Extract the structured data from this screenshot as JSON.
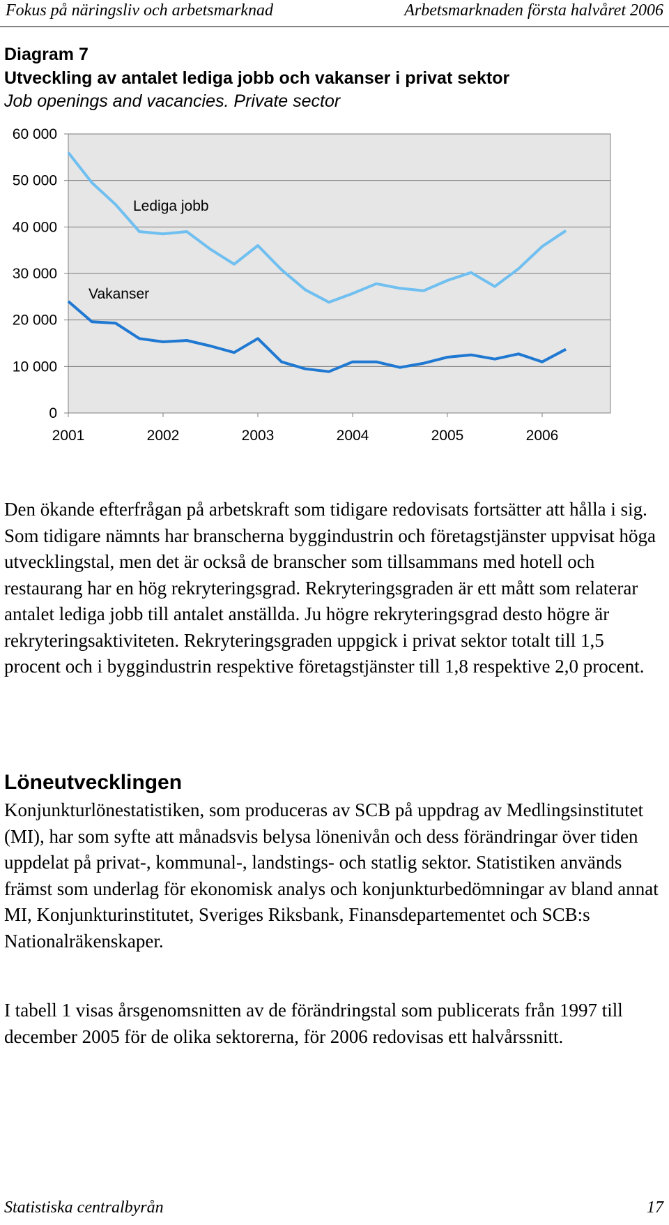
{
  "header": {
    "left": "Fokus på näringsliv och arbetsmarknad",
    "right": "Arbetsmarknaden första halvåret 2006"
  },
  "figure": {
    "number": "Diagram 7",
    "title": "Utveckling av antalet lediga jobb och vakanser i privat sektor",
    "subtitle": "Job openings and vacancies. Private sector"
  },
  "chart_data": {
    "type": "line",
    "x": [
      "2001Q1",
      "2001Q2",
      "2001Q3",
      "2001Q4",
      "2002Q1",
      "2002Q2",
      "2002Q3",
      "2002Q4",
      "2003Q1",
      "2003Q2",
      "2003Q3",
      "2003Q4",
      "2004Q1",
      "2004Q2",
      "2004Q3",
      "2004Q4",
      "2005Q1",
      "2005Q2",
      "2005Q3",
      "2005Q4",
      "2006Q1",
      "2006Q2"
    ],
    "x_tick_labels": [
      "2001",
      "2002",
      "2003",
      "2004",
      "2005",
      "2006"
    ],
    "y_tick_labels": [
      "0",
      "10 000",
      "20 000",
      "30 000",
      "40 000",
      "50 000",
      "60 000"
    ],
    "ylim": [
      0,
      60000
    ],
    "grid": true,
    "series": [
      {
        "name": "Lediga jobb",
        "color": "#6fbff0",
        "values": [
          56000,
          49500,
          44800,
          39000,
          38500,
          39000,
          35200,
          32000,
          36000,
          30800,
          26500,
          23800,
          25700,
          27800,
          26800,
          26300,
          28500,
          30200,
          27200,
          31000,
          35800,
          39200
        ]
      },
      {
        "name": "Vakanser",
        "color": "#1f78d1",
        "values": [
          24000,
          19600,
          19300,
          16000,
          15300,
          15600,
          14400,
          13000,
          16000,
          11000,
          9500,
          8900,
          11000,
          11000,
          9800,
          10700,
          12000,
          12500,
          11600,
          12700,
          11000,
          13700
        ]
      }
    ]
  },
  "body": {
    "paragraph1": "Den ökande efterfrågan på arbetskraft som tidigare redovisats fortsätter att hålla i sig. Som tidigare nämnts har branscherna byggindustrin och företagstjänster uppvisat höga utvecklingstal, men det är också de branscher som tillsammans med hotell och restaurang har en hög rekryteringsgrad. Rekryteringsgraden är ett mått som relaterar antalet lediga jobb till antalet anställda. Ju högre rekryteringsgrad desto högre är rekryteringsaktiviteten. Rekryteringsgraden uppgick i privat sektor totalt till 1,5 procent och i byggindustrin respektive företagstjänster till 1,8 respektive 2,0 procent.",
    "heading": "Löneutvecklingen",
    "paragraph2": "Konjunkturlönestatistiken, som produceras av SCB på uppdrag av Medlingsinstitutet (MI), har som syfte att månadsvis belysa lönenivån och dess förändringar över tiden uppdelat på privat-, kommunal-, landstings- och statlig sektor. Statistiken används främst som underlag för ekonomisk analys och konjunkturbedömningar av bland annat MI, Konjunkturinstitutet, Sveriges Riksbank, Finansdepartementet och SCB:s Nationalräkenskaper.",
    "paragraph3": "I tabell 1 visas årsgenomsnitten av de förändringstal som publicerats från 1997 till december 2005 för de olika sektorerna, för 2006 redovisas ett halvårssnitt."
  },
  "footer": {
    "publisher": "Statistiska centralbyrån",
    "page_number": "17"
  }
}
